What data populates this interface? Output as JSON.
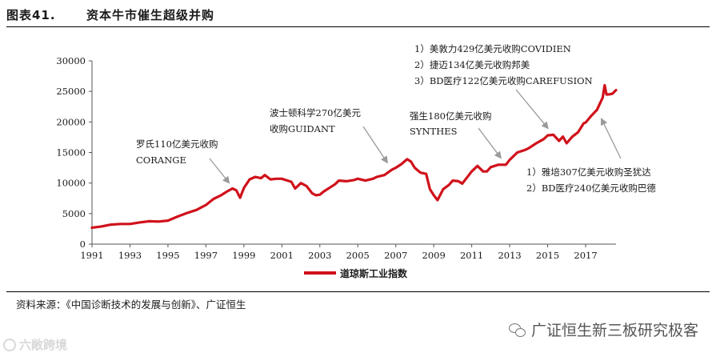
{
  "figure": {
    "number": "图表41.",
    "title": "资本牛市催生超级并购",
    "source": "资料来源：《中国诊断技术的发展与创新》、广证恒生",
    "watermark": "广证恒生新三板研究极客",
    "logo_text": "六敞跨境"
  },
  "chart_data": {
    "type": "line",
    "title": "",
    "xlabel": "",
    "ylabel": "",
    "xlim": [
      1991,
      2018.6
    ],
    "ylim": [
      0,
      30000
    ],
    "x_ticks": [
      "1991",
      "1993",
      "1995",
      "1997",
      "1999",
      "2001",
      "2003",
      "2005",
      "2007",
      "2009",
      "2011",
      "2013",
      "2015",
      "2017"
    ],
    "y_ticks": [
      "0",
      "5000",
      "10000",
      "15000",
      "20000",
      "25000",
      "30000"
    ],
    "legend": {
      "position": "bottom-center",
      "entries": [
        "道琼斯工业指数"
      ]
    },
    "grid": false,
    "series": [
      {
        "name": "道琼斯工业指数",
        "color": "#d0111b",
        "x": [
          1991.0,
          1991.5,
          1992.0,
          1992.5,
          1993.0,
          1993.5,
          1994.0,
          1994.5,
          1995.0,
          1995.5,
          1996.0,
          1996.5,
          1997.0,
          1997.4,
          1997.8,
          1998.1,
          1998.4,
          1998.6,
          1998.8,
          1999.0,
          1999.3,
          1999.6,
          1999.9,
          2000.1,
          2000.4,
          2000.7,
          2001.0,
          2001.3,
          2001.5,
          2001.7,
          2002.0,
          2002.3,
          2002.6,
          2002.8,
          2003.0,
          2003.2,
          2003.5,
          2003.8,
          2004.0,
          2004.4,
          2004.8,
          2005.0,
          2005.4,
          2005.8,
          2006.0,
          2006.4,
          2006.8,
          2007.0,
          2007.3,
          2007.6,
          2007.8,
          2008.0,
          2008.3,
          2008.6,
          2008.8,
          2009.0,
          2009.2,
          2009.5,
          2009.8,
          2010.0,
          2010.3,
          2010.5,
          2010.8,
          2011.0,
          2011.3,
          2011.6,
          2011.8,
          2012.0,
          2012.4,
          2012.8,
          2013.0,
          2013.4,
          2013.8,
          2014.0,
          2014.4,
          2014.8,
          2015.0,
          2015.3,
          2015.6,
          2015.8,
          2016.0,
          2016.3,
          2016.6,
          2016.9,
          2017.0,
          2017.3,
          2017.6,
          2017.9,
          2018.0,
          2018.1,
          2018.2,
          2018.4,
          2018.6
        ],
        "values": [
          2700,
          2900,
          3200,
          3300,
          3300,
          3550,
          3750,
          3700,
          3850,
          4500,
          5100,
          5600,
          6400,
          7400,
          8000,
          8600,
          9100,
          8800,
          7600,
          9200,
          10600,
          11000,
          10800,
          11300,
          10600,
          10700,
          10700,
          10400,
          10200,
          9100,
          10000,
          9500,
          8300,
          8000,
          8100,
          8600,
          9200,
          9800,
          10400,
          10300,
          10500,
          10700,
          10400,
          10700,
          11000,
          11300,
          12200,
          12500,
          13100,
          13900,
          13500,
          12500,
          11700,
          11500,
          9000,
          8000,
          7200,
          9000,
          9700,
          10400,
          10300,
          9900,
          11100,
          11900,
          12800,
          11900,
          11900,
          12600,
          13000,
          13000,
          13800,
          15000,
          15400,
          15700,
          16500,
          17200,
          17800,
          17900,
          16900,
          17600,
          16500,
          17600,
          18300,
          19800,
          19900,
          21000,
          22000,
          24000,
          26000,
          24500,
          24500,
          24600,
          25200
        ]
      }
    ],
    "annotations": [
      {
        "lines": [
          "罗氏110亿美元收购",
          "CORANGE"
        ],
        "target_x": 1998.5
      },
      {
        "lines": [
          "波士顿科学270亿美元",
          "收购GUIDANT"
        ],
        "target_x": 2006.8
      },
      {
        "lines": [
          "强生180亿美元收购",
          "SYNTHES"
        ],
        "target_x": 2012.8
      },
      {
        "lines": [
          "1）美敦力429亿美元收购COVIDIEN",
          "2）捷迈134亿美元收购邦美",
          "3）BD医疗122亿美元收购CAREFUSION"
        ],
        "target_x": 2015.3
      },
      {
        "lines": [
          "1）雅培307亿美元收购圣犹达",
          "2）BD医疗240亿美元收购巴德"
        ],
        "target_x": 2017.6
      }
    ]
  }
}
